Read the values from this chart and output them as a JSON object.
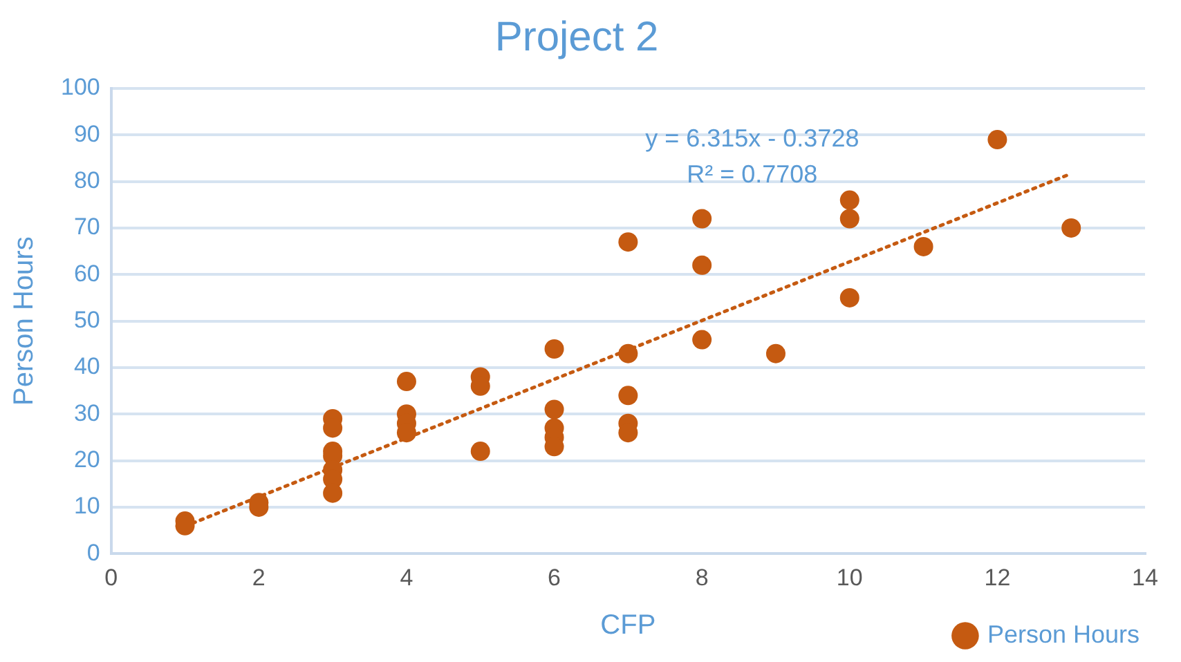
{
  "chart_data": {
    "type": "scatter",
    "title": "Project 2",
    "xlabel": "CFP",
    "ylabel": "Person Hours",
    "xlim": [
      0,
      14
    ],
    "xticks": [
      0,
      2,
      4,
      6,
      8,
      10,
      12,
      14
    ],
    "ylim": [
      0,
      100
    ],
    "yticks": [
      0,
      10,
      20,
      30,
      40,
      50,
      60,
      70,
      80,
      90,
      100
    ],
    "grid": "y",
    "legend": "bottom right",
    "marker": "circle",
    "annotations": [
      "y = 6.315x - 0.3728",
      "R² = 0.7708"
    ],
    "series": [
      {
        "name": "Person Hours",
        "type": "scatter",
        "color": "#c55a11",
        "x": [
          1,
          1,
          2,
          2,
          3,
          3,
          3,
          3,
          3,
          3,
          3,
          4,
          4,
          4,
          4,
          5,
          5,
          5,
          6,
          6,
          6,
          6,
          6,
          7,
          7,
          7,
          7,
          7,
          8,
          8,
          8,
          9,
          10,
          10,
          10,
          11,
          12,
          13
        ],
        "values": [
          7,
          6,
          11,
          10,
          29,
          27,
          22,
          21,
          18,
          16,
          13,
          37,
          30,
          28,
          26,
          38,
          36,
          22,
          44,
          31,
          27,
          25,
          23,
          67,
          43,
          34,
          28,
          26,
          72,
          62,
          46,
          43,
          76,
          72,
          55,
          66,
          89,
          70
        ]
      },
      {
        "type": "line",
        "color": "#c55a11",
        "line_style": "dotted",
        "marker": "none",
        "x": [
          1,
          13
        ],
        "values": [
          5.9,
          81.7
        ]
      }
    ]
  }
}
